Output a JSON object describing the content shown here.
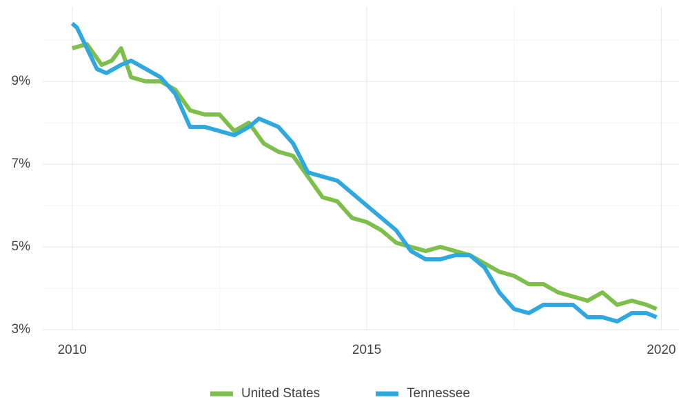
{
  "chart_data": {
    "type": "line",
    "xlim": [
      2009.5,
      2020.3
    ],
    "ylim": [
      3,
      10.8
    ],
    "xticks": [
      2010,
      2015,
      2020
    ],
    "xminor_ticks": [
      2012.5,
      2017.5
    ],
    "yticks": [
      {
        "value": 3,
        "label": "3%"
      },
      {
        "value": 5,
        "label": "5%"
      },
      {
        "value": 7,
        "label": "7%"
      },
      {
        "value": 9,
        "label": "9%"
      }
    ],
    "yminor_ticks": [
      4,
      6,
      8,
      10
    ],
    "grid": true,
    "legend": "bottom",
    "series": [
      {
        "name": "United States",
        "color": "#7dbf4a",
        "x": [
          2010,
          2010.25,
          2010.5,
          2010.67,
          2010.83,
          2011,
          2011.25,
          2011.5,
          2011.75,
          2012,
          2012.25,
          2012.5,
          2012.75,
          2013,
          2013.25,
          2013.5,
          2013.75,
          2014,
          2014.25,
          2014.5,
          2014.75,
          2015,
          2015.25,
          2015.5,
          2015.75,
          2016,
          2016.25,
          2016.5,
          2016.75,
          2017,
          2017.25,
          2017.5,
          2017.75,
          2018,
          2018.25,
          2018.5,
          2018.75,
          2019,
          2019.25,
          2019.5,
          2019.75,
          2019.92
        ],
        "values": [
          9.8,
          9.9,
          9.4,
          9.5,
          9.8,
          9.1,
          9.0,
          9.0,
          8.8,
          8.3,
          8.2,
          8.2,
          7.8,
          8.0,
          7.5,
          7.3,
          7.2,
          6.7,
          6.2,
          6.1,
          5.7,
          5.6,
          5.4,
          5.1,
          5.0,
          4.9,
          5.0,
          4.9,
          4.8,
          4.6,
          4.4,
          4.3,
          4.1,
          4.1,
          3.9,
          3.8,
          3.7,
          3.9,
          3.6,
          3.7,
          3.6,
          3.5
        ]
      },
      {
        "name": "Tennessee",
        "color": "#2fa8e0",
        "x": [
          2010,
          2010.08,
          2010.25,
          2010.42,
          2010.58,
          2010.83,
          2011,
          2011.25,
          2011.5,
          2011.75,
          2012,
          2012.25,
          2012.5,
          2012.75,
          2013,
          2013.17,
          2013.5,
          2013.75,
          2014,
          2014.25,
          2014.5,
          2014.75,
          2015,
          2015.25,
          2015.5,
          2015.75,
          2016,
          2016.25,
          2016.5,
          2016.75,
          2017,
          2017.25,
          2017.5,
          2017.75,
          2018,
          2018.25,
          2018.5,
          2018.75,
          2019,
          2019.25,
          2019.5,
          2019.75,
          2019.92
        ],
        "values": [
          10.4,
          10.3,
          9.8,
          9.3,
          9.2,
          9.4,
          9.5,
          9.3,
          9.1,
          8.7,
          7.9,
          7.9,
          7.8,
          7.7,
          7.9,
          8.1,
          7.9,
          7.5,
          6.8,
          6.7,
          6.6,
          6.3,
          6.0,
          5.7,
          5.4,
          4.9,
          4.7,
          4.7,
          4.8,
          4.8,
          4.5,
          3.9,
          3.5,
          3.4,
          3.6,
          3.6,
          3.6,
          3.3,
          3.3,
          3.2,
          3.4,
          3.4,
          3.3
        ]
      }
    ]
  }
}
